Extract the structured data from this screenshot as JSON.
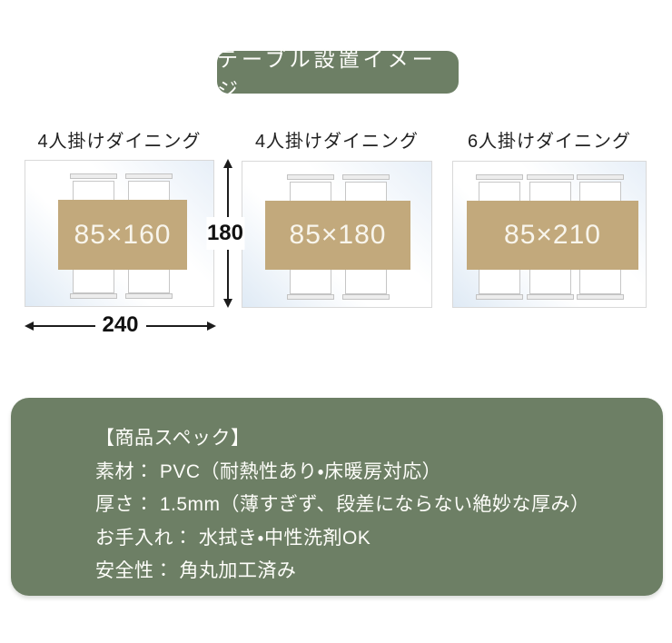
{
  "badge": {
    "label": "テーブル設置イメージ"
  },
  "diagrams": [
    {
      "title": "4人掛けダイニング",
      "table_label": "85×160",
      "chairs_per_side": 2
    },
    {
      "title": "4人掛けダイニング",
      "table_label": "85×180",
      "chairs_per_side": 2
    },
    {
      "title": "6人掛けダイニング",
      "table_label": "85×210",
      "chairs_per_side": 3
    }
  ],
  "dimensions": {
    "mat_height_label": "180",
    "mat_width_label": "240"
  },
  "spec": {
    "heading": "【商品スペック】",
    "lines": [
      "素材： PVC（耐熱性あり・床暖房対応）",
      "厚さ： 1.5mm（薄すぎず、段差にならない絶妙な厚み）",
      "お手入れ： 水拭き・中性洗剤OK",
      "安全性： 角丸加工済み"
    ]
  },
  "colors": {
    "accent_green": "#6d7f65",
    "table_tan": "#c2a97c",
    "mat_highlight_blue": "#e3edf7",
    "mat_border": "#d9d9d9",
    "dimension_ink": "#1c1c1c",
    "label_text": "#222222",
    "panel_text": "#fdfdf9"
  }
}
